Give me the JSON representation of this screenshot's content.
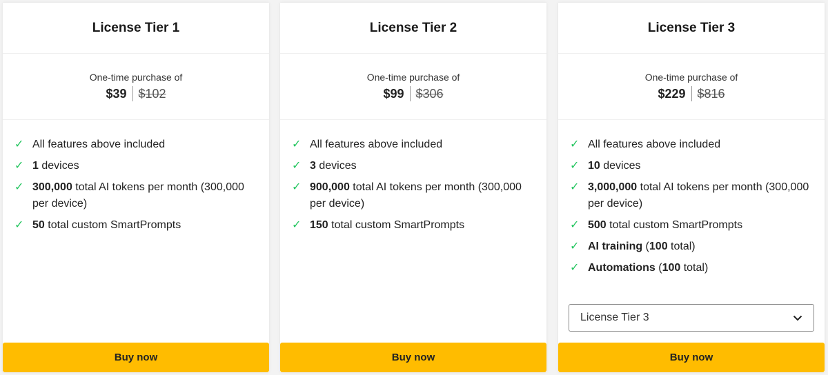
{
  "accent": "#ffbc00",
  "check_color": "#22c55e",
  "cards": [
    {
      "title": "License Tier 1",
      "price_label": "One-time purchase of",
      "price": "$39",
      "old_price": "$102",
      "buy": "Buy now",
      "features": [
        [
          [
            "",
            "All features above included"
          ]
        ],
        [
          [
            "b",
            "1"
          ],
          [
            "",
            " devices"
          ]
        ],
        [
          [
            "b",
            "300,000"
          ],
          [
            "",
            " total AI tokens per month (300,000 per device)"
          ]
        ],
        [
          [
            "b",
            "50"
          ],
          [
            "",
            " total custom SmartPrompts"
          ]
        ]
      ]
    },
    {
      "title": "License Tier 2",
      "price_label": "One-time purchase of",
      "price": "$99",
      "old_price": "$306",
      "buy": "Buy now",
      "features": [
        [
          [
            "",
            "All features above included"
          ]
        ],
        [
          [
            "b",
            "3"
          ],
          [
            "",
            " devices"
          ]
        ],
        [
          [
            "b",
            "900,000"
          ],
          [
            "",
            " total AI tokens per month (300,000 per device)"
          ]
        ],
        [
          [
            "b",
            "150"
          ],
          [
            "",
            " total custom SmartPrompts"
          ]
        ]
      ]
    },
    {
      "title": "License Tier 3",
      "price_label": "One-time purchase of",
      "price": "$229",
      "old_price": "$816",
      "buy": "Buy now",
      "select": "License Tier 3",
      "features": [
        [
          [
            "",
            "All features above included"
          ]
        ],
        [
          [
            "b",
            "10"
          ],
          [
            "",
            " devices"
          ]
        ],
        [
          [
            "b",
            "3,000,000"
          ],
          [
            "",
            " total AI tokens per month (300,000 per device)"
          ]
        ],
        [
          [
            "b",
            "500"
          ],
          [
            "",
            " total custom SmartPrompts"
          ]
        ],
        [
          [
            "b",
            "AI training"
          ],
          [
            "",
            " ("
          ],
          [
            "b",
            "100"
          ],
          [
            "",
            " total)"
          ]
        ],
        [
          [
            "b",
            "Automations"
          ],
          [
            "",
            " ("
          ],
          [
            "b",
            "100"
          ],
          [
            "",
            " total)"
          ]
        ]
      ]
    }
  ]
}
